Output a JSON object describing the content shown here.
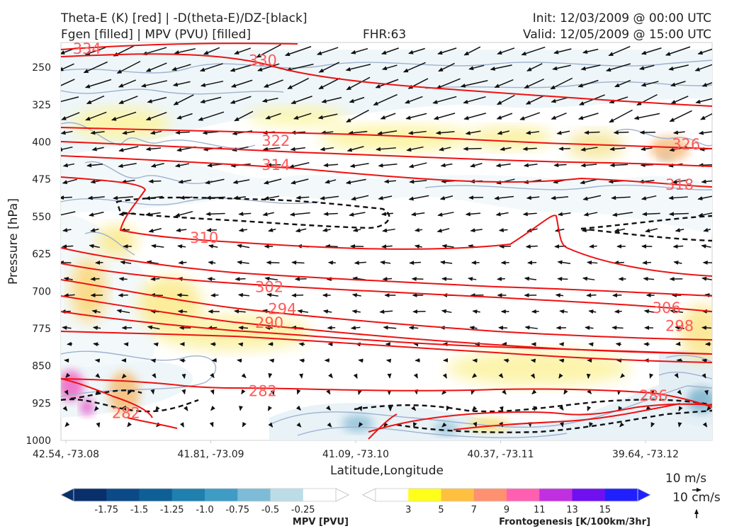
{
  "header": {
    "title_left_1": "Theta-E (K) [red] | -D(theta-E)/DZ-[black]",
    "title_left_2": "Fgen [filled] | MPV (PVU) [filled]",
    "fhr": "FHR:63",
    "init": "Init: 12/03/2009 @ 00:00 UTC",
    "valid": "Valid: 12/05/2009 @ 15:00 UTC"
  },
  "chart_data": {
    "type": "cross-section",
    "xlabel": "Latitude,Longitude",
    "ylabel": "Pressure [hPa]",
    "x_ticks": [
      "42.54, -73.08",
      "41.81, -73.09",
      "41.09, -73.10",
      "40.37, -73.11",
      "39.64, -73.12"
    ],
    "y_ticks": [
      "250",
      "325",
      "400",
      "475",
      "550",
      "625",
      "700",
      "775",
      "850",
      "925",
      "1000"
    ],
    "y_values": [
      250,
      325,
      400,
      475,
      550,
      625,
      700,
      775,
      850,
      925,
      1000
    ],
    "ylim": [
      1000,
      200
    ],
    "theta_e_color": "#ee1111",
    "theta_e_contour_labels": [
      {
        "text": "334",
        "x": 0.04,
        "p": 213
      },
      {
        "text": "330",
        "x": 0.31,
        "p": 236
      },
      {
        "text": "326",
        "x": 0.96,
        "p": 405
      },
      {
        "text": "322",
        "x": 0.33,
        "p": 398
      },
      {
        "text": "318",
        "x": 0.95,
        "p": 486
      },
      {
        "text": "314",
        "x": 0.33,
        "p": 446
      },
      {
        "text": "310",
        "x": 0.22,
        "p": 593
      },
      {
        "text": "306",
        "x": 0.93,
        "p": 734
      },
      {
        "text": "302",
        "x": 0.32,
        "p": 692
      },
      {
        "text": "298",
        "x": 0.95,
        "p": 770
      },
      {
        "text": "294",
        "x": 0.34,
        "p": 736
      },
      {
        "text": "290",
        "x": 0.32,
        "p": 764
      },
      {
        "text": "286",
        "x": 0.91,
        "p": 910
      },
      {
        "text": "282",
        "x": 0.31,
        "p": 901
      },
      {
        "text": "282",
        "x": 0.1,
        "p": 945
      }
    ],
    "mpv_colorbar": {
      "label": "MPV [PVU]",
      "ticks": [
        "-1.75",
        "-1.5",
        "-1.25",
        "-1.0",
        "-0.75",
        "-0.5",
        "-0.25"
      ],
      "colors": [
        "#08306b",
        "#0b4a87",
        "#0f5f97",
        "#1f7fae",
        "#3f9cc4",
        "#7dbbd6",
        "#bcdce8",
        "#ffffff"
      ]
    },
    "fgen_colorbar": {
      "label": "Frontogenesis [K/100km/3hr]",
      "ticks": [
        "3",
        "5",
        "7",
        "9",
        "11",
        "13",
        "15"
      ],
      "colors": [
        "#ffffff",
        "#ffff19",
        "#ffc040",
        "#ff9070",
        "#ff5fb0",
        "#c030e0",
        "#7010f0",
        "#2020ff"
      ]
    },
    "quiver_keys": [
      "10 m/s",
      "10 cm/s"
    ]
  }
}
